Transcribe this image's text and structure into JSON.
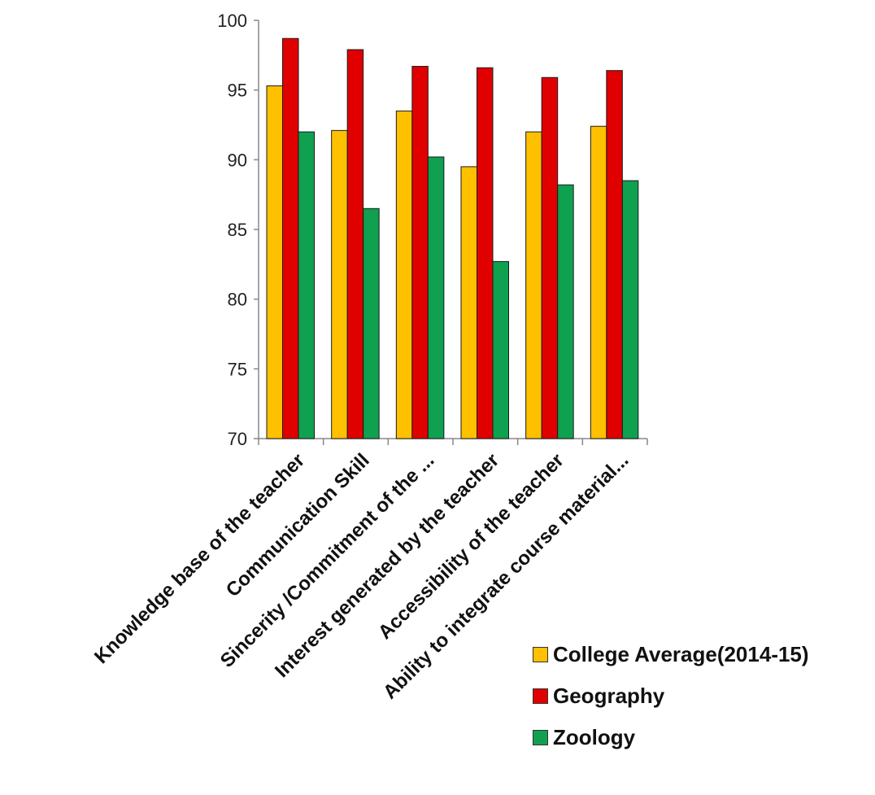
{
  "chart_data": {
    "type": "bar",
    "categories": [
      "Knowledge base of the teacher",
      "Communication Skill",
      "Sincerity /Commitment  of the ...",
      "Interest generated by the teacher",
      "Accessibility of the teacher",
      "Ability to integrate course material..."
    ],
    "series": [
      {
        "name": "College Average(2014-15)",
        "color": "#FFC000",
        "values": [
          95.3,
          92.1,
          93.5,
          89.5,
          92.0,
          92.4
        ]
      },
      {
        "name": "Geography",
        "color": "#E00000",
        "values": [
          98.7,
          97.9,
          96.7,
          96.6,
          95.9,
          96.4
        ]
      },
      {
        "name": "Zoology",
        "color": "#0FA050",
        "values": [
          92.0,
          86.5,
          90.2,
          82.7,
          88.2,
          88.5
        ]
      }
    ],
    "yticks": [
      70,
      75,
      80,
      85,
      90,
      95,
      100
    ],
    "ylim": [
      70,
      100
    ],
    "title": "",
    "xlabel": "",
    "ylabel": "",
    "grid": false,
    "legend_position": "bottom-right"
  }
}
